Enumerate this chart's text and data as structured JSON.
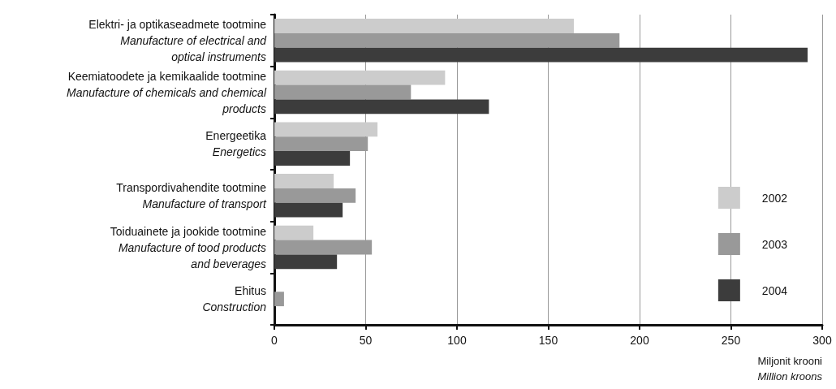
{
  "chart_data": {
    "type": "bar",
    "orientation": "horizontal",
    "categories": [
      "Elektri- ja optikaseadmete tootmine\nManufacture of electrical and\noptical instruments",
      "Keemiatoodete ja kemikaalide tootmine\nManufacture of chemicals and chemical\nproducts",
      "Energeetika\nEnergetics",
      "Transpordivahendite tootmine\nManufacture of transport",
      "Toiduainete ja jookide tootmine\nManufacture of tood products\nand beverages",
      "Ehitus\nConstruction"
    ],
    "series": [
      {
        "name": "2002",
        "color": "#cccccc",
        "values": [
          164,
          93.5,
          56.5,
          32.5,
          21.4,
          0
        ]
      },
      {
        "name": "2003",
        "color": "#999999",
        "values": [
          189,
          74.8,
          51.2,
          44.5,
          53.4,
          5.3
        ]
      },
      {
        "name": "2004",
        "color": "#3c3c3c",
        "values": [
          292,
          117.5,
          41.4,
          37.4,
          34.3,
          null
        ]
      }
    ],
    "xlabel": "Miljonit krooni\nMillion kroons",
    "xlim": [
      0,
      300
    ],
    "xticks": [
      0,
      50,
      100,
      150,
      200,
      250,
      300
    ],
    "grid": "x",
    "legend": "right"
  }
}
